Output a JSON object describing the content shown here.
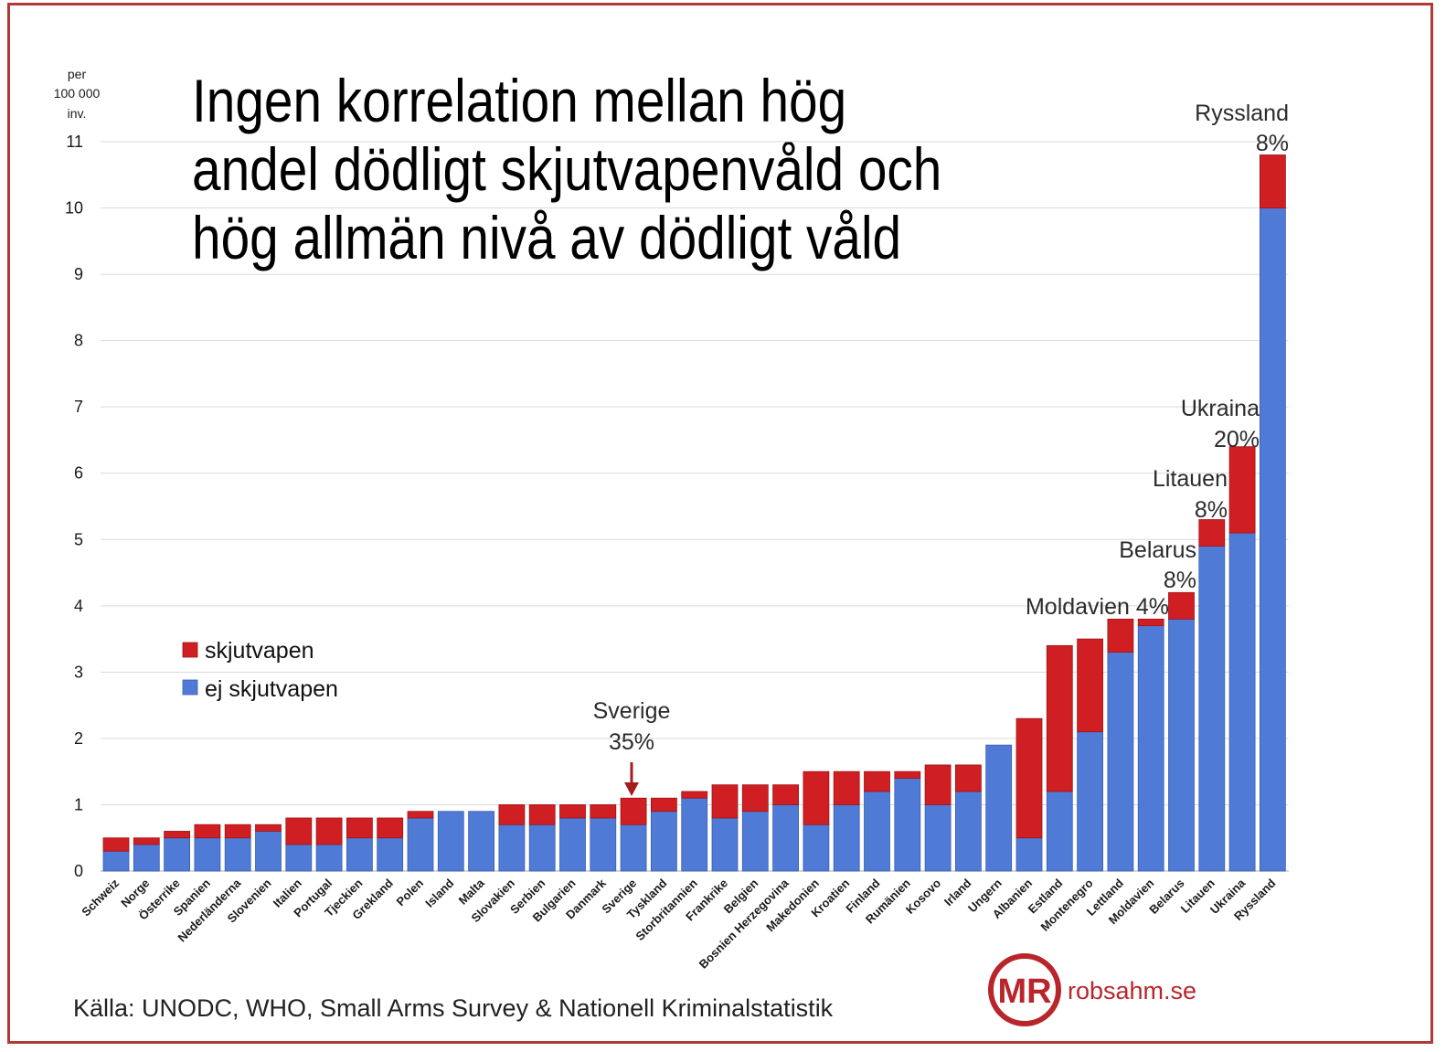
{
  "source": "Källa: UNODC, WHO, Small Arms Survey & Nationell Kriminalstatistik",
  "logo": {
    "initials": "MR",
    "site": "robsahm.se"
  },
  "colors": {
    "frame": "#b33a34",
    "skjutvapen": "#d01f22",
    "skjutvapen_edge": "#9e1215",
    "ej_skjutvapen": "#4f7ad6",
    "ej_skjutvapen_edge": "#3b5fb3",
    "arrow": "#a51d1d",
    "logo": "#b8262b"
  },
  "chart_data": {
    "type": "bar",
    "stacked": true,
    "title_lines": [
      "Ingen korrelation mellan hög",
      "andel dödligt skjutvapenvåld och",
      "hög allmän nivå av dödligt våld"
    ],
    "ylabel_lines": [
      "per",
      "100 000",
      "inv."
    ],
    "xlabel": "",
    "ylim": [
      0,
      11
    ],
    "yticks": [
      0,
      1,
      2,
      3,
      4,
      5,
      6,
      7,
      8,
      9,
      10,
      11
    ],
    "grid": true,
    "legend_position": "left",
    "categories": [
      "Schweiz",
      "Norge",
      "Österrike",
      "Spanien",
      "Nederländerna",
      "Slovenien",
      "Italien",
      "Portugal",
      "Tjeckien",
      "Grekland",
      "Polen",
      "Island",
      "Malta",
      "Slovakien",
      "Serbien",
      "Bulgarien",
      "Danmark",
      "Sverige",
      "Tyskland",
      "Storbritannien",
      "Frankrike",
      "Belgien",
      "Bosnien Herzegovina",
      "Makedonien",
      "Kroatien",
      "Finland",
      "Rumänien",
      "Kosovo",
      "Irland",
      "Ungern",
      "Albanien",
      "Estland",
      "Montenegro",
      "Lettland",
      "Moldavien",
      "Belarus",
      "Litauen",
      "Ukraina",
      "Ryssland"
    ],
    "series": [
      {
        "name": "skjutvapen",
        "values": [
          0.2,
          0.1,
          0.1,
          0.2,
          0.2,
          0.1,
          0.4,
          0.4,
          0.3,
          0.3,
          0.1,
          0,
          0,
          0.3,
          0.3,
          0.2,
          0.2,
          0.4,
          0.2,
          0.1,
          0.5,
          0.4,
          0.3,
          0.8,
          0.5,
          0.3,
          0.1,
          0.6,
          0.4,
          0,
          1.8,
          2.2,
          1.4,
          0.5,
          0.1,
          0.4,
          0.4,
          1.3,
          0.8
        ]
      },
      {
        "name": "ej skjutvapen",
        "values": [
          0.3,
          0.4,
          0.5,
          0.5,
          0.5,
          0.6,
          0.4,
          0.4,
          0.5,
          0.5,
          0.8,
          0.9,
          0.9,
          0.7,
          0.7,
          0.8,
          0.8,
          0.7,
          0.9,
          1.1,
          0.8,
          0.9,
          1.0,
          0.7,
          1.0,
          1.2,
          1.4,
          1.0,
          1.2,
          1.9,
          0.5,
          1.2,
          2.1,
          3.3,
          3.7,
          3.8,
          4.9,
          5.1,
          10.0
        ]
      }
    ],
    "annotations": [
      {
        "lines": [
          "Sverige",
          "35%"
        ]
      },
      {
        "lines": [
          "Moldavien 4%"
        ]
      },
      {
        "lines": [
          "Belarus",
          "8%"
        ]
      },
      {
        "lines": [
          "Litauen",
          "8%"
        ]
      },
      {
        "lines": [
          "Ukraina",
          "20%"
        ]
      },
      {
        "lines": [
          "Ryssland",
          "8%"
        ]
      }
    ]
  }
}
